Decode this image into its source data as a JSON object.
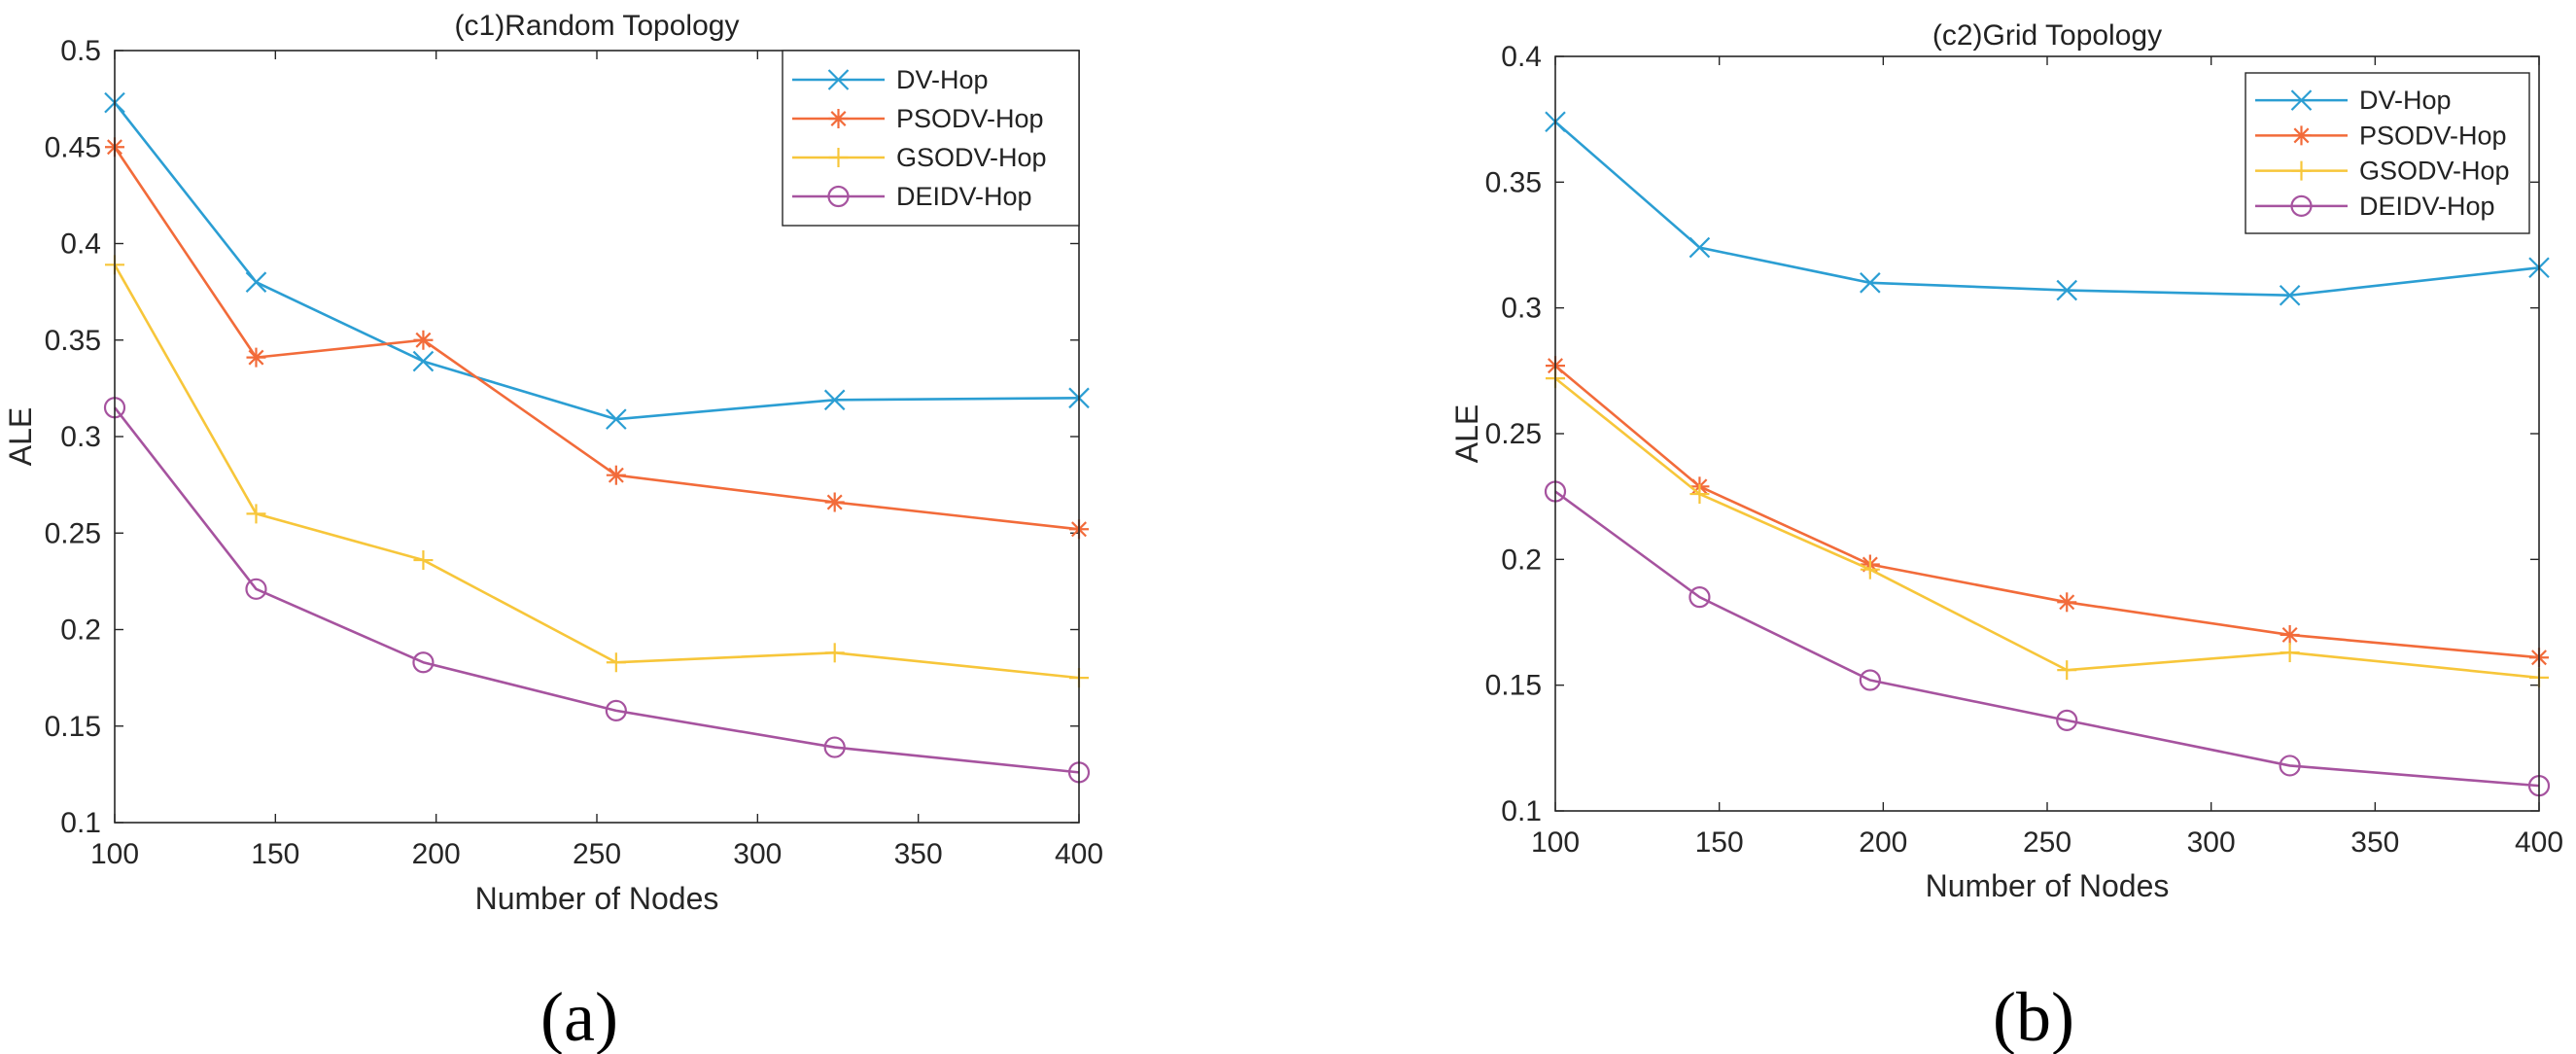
{
  "colors": {
    "DV-Hop": "#2b9ed3",
    "PSODV-Hop": "#f26b3a",
    "GSODV-Hop": "#f7c63a",
    "DEIDV-Hop": "#a6539f",
    "axis": "#262626"
  },
  "chart_data": [
    {
      "type": "line",
      "title": "(c1)Random Topology",
      "caption": "(a)",
      "xlabel": "Number of Nodes",
      "ylabel": "ALE",
      "xlim": [
        100,
        400
      ],
      "ylim": [
        0.1,
        0.5
      ],
      "xticks": [
        100,
        150,
        200,
        250,
        300,
        350,
        400
      ],
      "xtick_labels": [
        "100",
        "150",
        "200",
        "250",
        "300",
        "350",
        "400"
      ],
      "yticks": [
        0.1,
        0.15,
        0.2,
        0.25,
        0.3,
        0.35,
        0.4,
        0.45,
        0.5
      ],
      "ytick_labels": [
        "0.1",
        "0.15",
        "0.2",
        "0.25",
        "0.3",
        "0.35",
        "0.4",
        "0.45",
        "0.5"
      ],
      "legend_position": "top-right",
      "x": [
        100,
        144,
        196,
        256,
        324,
        400
      ],
      "series": [
        {
          "name": "DV-Hop",
          "marker": "x",
          "values": [
            0.473,
            0.38,
            0.339,
            0.309,
            0.319,
            0.32
          ]
        },
        {
          "name": "PSODV-Hop",
          "marker": "asterisk",
          "values": [
            0.45,
            0.341,
            0.35,
            0.28,
            0.266,
            0.252
          ]
        },
        {
          "name": "GSODV-Hop",
          "marker": "plus",
          "values": [
            0.389,
            0.26,
            0.236,
            0.183,
            0.188,
            0.175
          ]
        },
        {
          "name": "DEIDV-Hop",
          "marker": "circle",
          "values": [
            0.315,
            0.221,
            0.183,
            0.158,
            0.139,
            0.126
          ]
        }
      ]
    },
    {
      "type": "line",
      "title": "(c2)Grid Topology",
      "caption": "(b)",
      "xlabel": "Number of Nodes",
      "ylabel": "ALE",
      "xlim": [
        100,
        400
      ],
      "ylim": [
        0.1,
        0.4
      ],
      "xticks": [
        100,
        150,
        200,
        250,
        300,
        350,
        400
      ],
      "xtick_labels": [
        "100",
        "150",
        "200",
        "250",
        "300",
        "350",
        "400"
      ],
      "yticks": [
        0.1,
        0.15,
        0.2,
        0.25,
        0.3,
        0.35,
        0.4
      ],
      "ytick_labels": [
        "0.1",
        "0.15",
        "0.2",
        "0.25",
        "0.3",
        "0.35",
        "0.4"
      ],
      "legend_position": "top-right",
      "x": [
        100,
        144,
        196,
        256,
        324,
        400
      ],
      "series": [
        {
          "name": "DV-Hop",
          "marker": "x",
          "values": [
            0.374,
            0.324,
            0.31,
            0.307,
            0.305,
            0.316
          ]
        },
        {
          "name": "PSODV-Hop",
          "marker": "asterisk",
          "values": [
            0.277,
            0.229,
            0.198,
            0.183,
            0.17,
            0.161
          ]
        },
        {
          "name": "GSODV-Hop",
          "marker": "plus",
          "values": [
            0.272,
            0.226,
            0.196,
            0.156,
            0.163,
            0.153
          ]
        },
        {
          "name": "DEIDV-Hop",
          "marker": "circle",
          "values": [
            0.227,
            0.185,
            0.152,
            0.136,
            0.118,
            0.11
          ]
        }
      ]
    }
  ]
}
